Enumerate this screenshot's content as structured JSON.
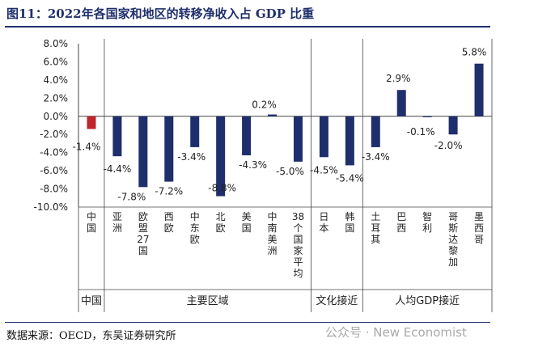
{
  "title": "图11：2022年各国家和地区的转移净收入占 GDP 比重",
  "source": "数据来源：OECD，东吴证券研究所",
  "watermark": "公众号 · New Economist",
  "colors": {
    "positive": "#1f2f6b",
    "negative_highlight": "#c0272d",
    "title": "#1f2f6b"
  },
  "chart_data": {
    "type": "bar",
    "ylim": [
      -10,
      8
    ],
    "yticks": [
      "8.0%",
      "6.0%",
      "4.0%",
      "2.0%",
      "0.0%",
      "-2.0%",
      "-4.0%",
      "-6.0%",
      "-8.0%",
      "-10.0%"
    ],
    "ytick_values": [
      8,
      6,
      4,
      2,
      0,
      -2,
      -4,
      -6,
      -8,
      -10
    ],
    "categories": [
      "中国",
      "亚洲",
      "欧盟27国",
      "西欧",
      "中东欧",
      "北欧",
      "美国",
      "中南美洲",
      "38个国家平均",
      "日本",
      "韩国",
      "土耳其",
      "巴西",
      "智利",
      "哥斯达黎加",
      "墨西哥"
    ],
    "values": [
      -1.4,
      -4.4,
      -7.8,
      -7.2,
      -3.4,
      -8.8,
      -4.3,
      0.2,
      -5.0,
      -4.5,
      -5.4,
      -3.4,
      2.9,
      -0.1,
      -2.0,
      5.8
    ],
    "data_labels": [
      "-1.4%",
      "-4.4%",
      "-7.8%",
      "-7.2%",
      "-3.4%",
      "-8.8%",
      "-4.3%",
      "0.2%",
      "-5.0%",
      "-4.5%",
      "-5.4%",
      "-3.4%",
      "2.9%",
      "-0.1%",
      "-2.0%",
      "5.8%"
    ],
    "highlight_index": 0,
    "groups": [
      {
        "label": "中国",
        "start": 0,
        "end": 0
      },
      {
        "label": "主要区域",
        "start": 1,
        "end": 8
      },
      {
        "label": "文化接近",
        "start": 9,
        "end": 10
      },
      {
        "label": "人均GDP接近",
        "start": 11,
        "end": 15
      }
    ]
  }
}
